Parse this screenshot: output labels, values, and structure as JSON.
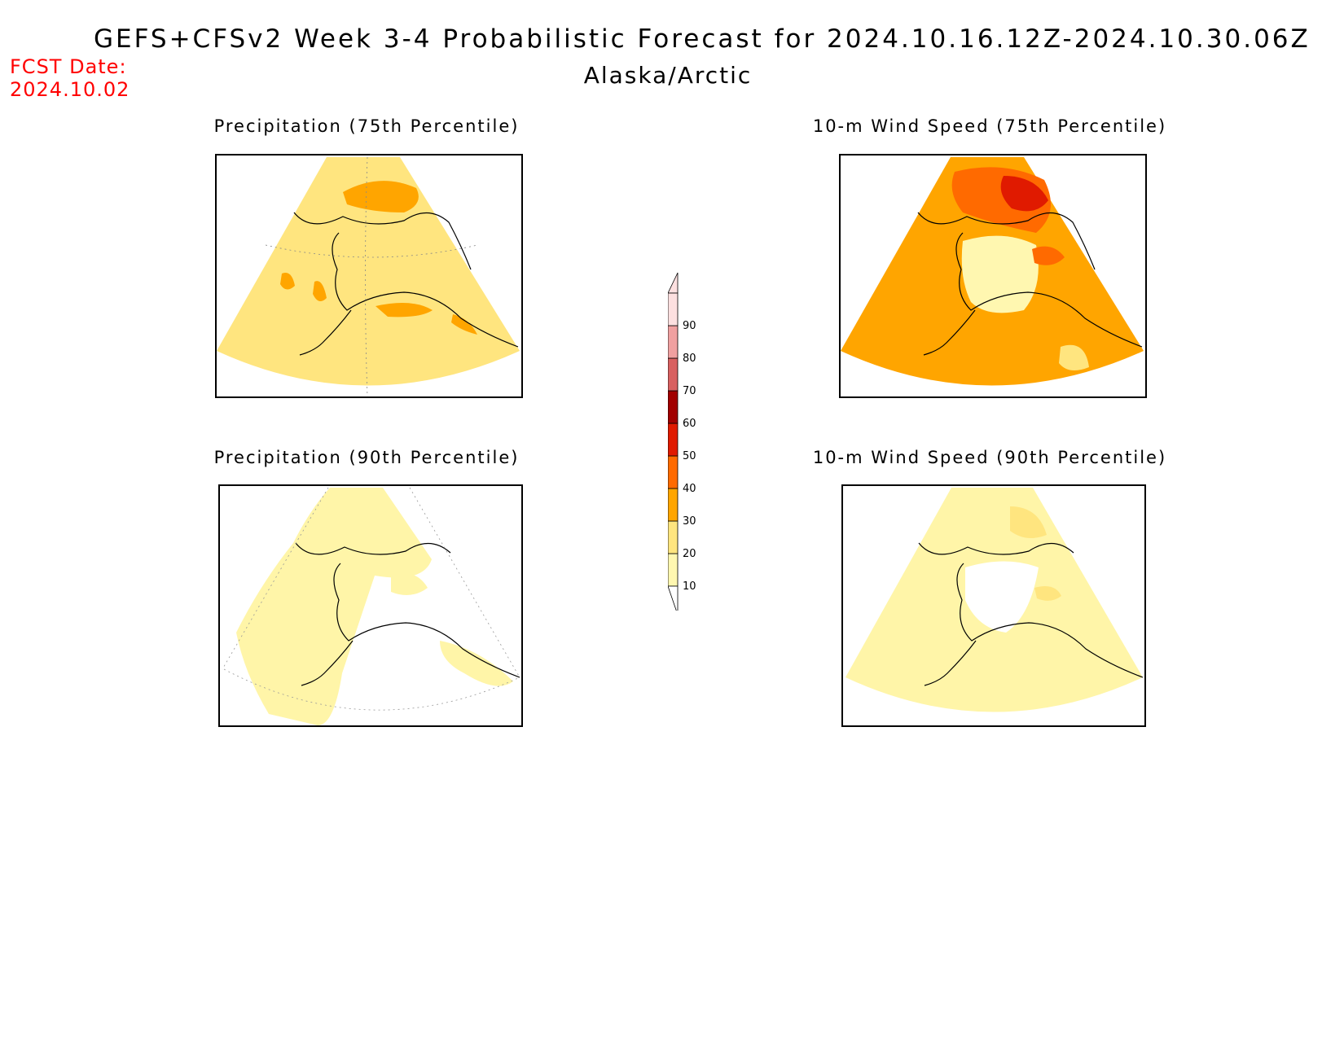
{
  "header": {
    "title": "GEFS+CFSv2 Week 3-4 Probabilistic Forecast for 2024.10.16.12Z-2024.10.30.06Z",
    "region": "Alaska/Arctic",
    "fcst_label": "FCST Date:",
    "fcst_date": "2024.10.02"
  },
  "panels": [
    {
      "title": "Precipitation (75th Percentile)",
      "fill": "#ffe57f",
      "highlight": "#ffa500"
    },
    {
      "title": "10-m Wind Speed (75th Percentile)",
      "fill": "#ffa500",
      "highlight": "#ff6a00"
    },
    {
      "title": "Precipitation (90th Percentile)",
      "fill": "#fff5a8",
      "highlight": "#ffe57f"
    },
    {
      "title": "10-m Wind Speed (90th Percentile)",
      "fill": "#fff5a8",
      "highlight": "#ffe57f"
    }
  ],
  "colorbar": {
    "ticks": [
      "10",
      "20",
      "30",
      "40",
      "50",
      "60",
      "70",
      "80",
      "90"
    ],
    "colors": [
      "#fff7b0",
      "#ffe57f",
      "#ffa500",
      "#ff6a00",
      "#e01a00",
      "#a10000",
      "#d86060",
      "#f0a0a0",
      "#fde0e0"
    ]
  }
}
